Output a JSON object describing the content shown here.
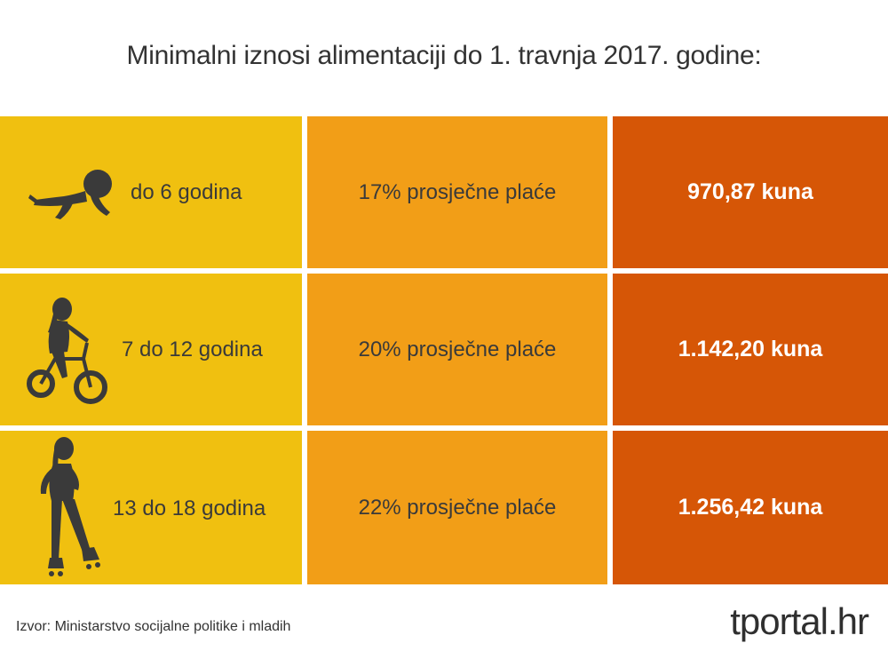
{
  "title": "Minimalni iznosi alimentaciji do 1. travnja 2017. godine:",
  "rows": [
    {
      "age": "do 6 godina",
      "percent": "17% prosječne plaće",
      "amount": "970,87 kuna",
      "icon": "crawling-baby-icon"
    },
    {
      "age": "7 do 12 godina",
      "percent": "20% prosječne plaće",
      "amount": "1.142,20 kuna",
      "icon": "child-on-bicycle-icon"
    },
    {
      "age": "13 do 18 godina",
      "percent": "22% prosječne plaće",
      "amount": "1.256,42 kuna",
      "icon": "teen-rollerblading-icon"
    }
  ],
  "source": "Izvor: Ministarstvo socijalne politike i mladih",
  "logo": "tportal.hr",
  "colors": {
    "yellow": "#f0c010",
    "orange": "#f29e17",
    "dark_orange": "#d65606"
  }
}
